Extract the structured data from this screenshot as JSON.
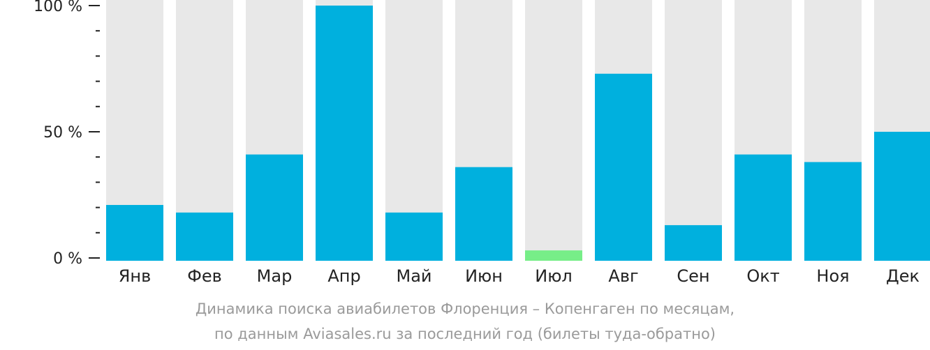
{
  "chart_data": {
    "type": "bar",
    "categories": [
      "Янв",
      "Фев",
      "Мар",
      "Апр",
      "Май",
      "Июн",
      "Июл",
      "Авг",
      "Сен",
      "Окт",
      "Ноя",
      "Дек"
    ],
    "values": [
      21,
      18,
      41,
      100,
      18,
      36,
      3,
      73,
      13,
      41,
      38,
      50
    ],
    "ylim": [
      0,
      100
    ],
    "y_ticks": [
      0,
      50,
      100
    ],
    "y_tick_labels": [
      "0 %",
      "50 %",
      "100 %"
    ],
    "y_minor_tick_step": 10,
    "colors": {
      "bar": "#00b0de",
      "lowest_bar": "#77ee88",
      "background_bar": "#e8e8e8",
      "text": "#222222",
      "caption": "#9a9a9a"
    },
    "lowest_category": "Июл"
  },
  "caption": {
    "line1": "Динамика поиска авиабилетов Флоренция – Копенгаген по месяцам,",
    "line2": "по данным Aviasales.ru за последний год (билеты туда-обратно)"
  }
}
